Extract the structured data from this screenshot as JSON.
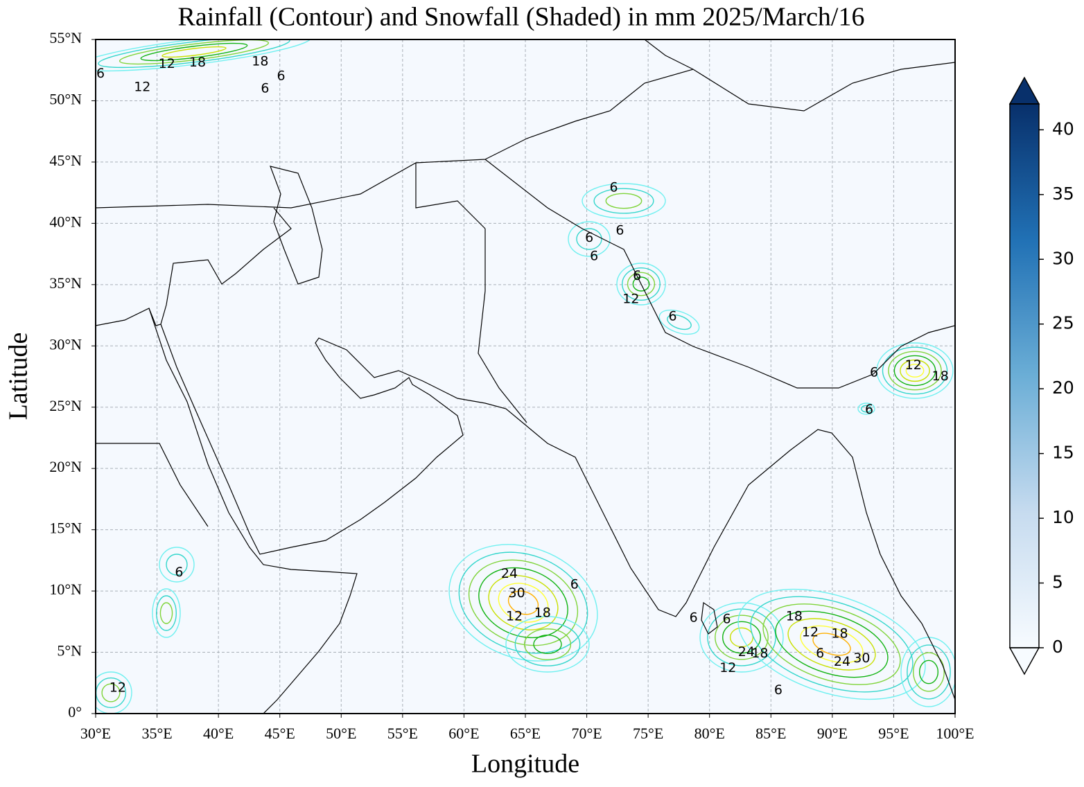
{
  "chart_data": {
    "type": "map",
    "title": "Rainfall (Contour) and Snowfall (Shaded) in mm  2025/March/16",
    "x_label": "Longitude",
    "y_label": "Latitude",
    "xlim": [
      30,
      100
    ],
    "ylim": [
      0,
      55
    ],
    "xticks": [
      {
        "value": 30,
        "label": "30°E"
      },
      {
        "value": 35,
        "label": "35°E"
      },
      {
        "value": 40,
        "label": "40°E"
      },
      {
        "value": 45,
        "label": "45°E"
      },
      {
        "value": 50,
        "label": "50°E"
      },
      {
        "value": 55,
        "label": "55°E"
      },
      {
        "value": 60,
        "label": "60°E"
      },
      {
        "value": 65,
        "label": "65°E"
      },
      {
        "value": 70,
        "label": "70°E"
      },
      {
        "value": 75,
        "label": "75°E"
      },
      {
        "value": 80,
        "label": "80°E"
      },
      {
        "value": 85,
        "label": "85°E"
      },
      {
        "value": 90,
        "label": "90°E"
      },
      {
        "value": 95,
        "label": "95°E"
      },
      {
        "value": 100,
        "label": "100°E"
      }
    ],
    "yticks": [
      {
        "value": 0,
        "label": "0°"
      },
      {
        "value": 5,
        "label": "5°N"
      },
      {
        "value": 10,
        "label": "10°N"
      },
      {
        "value": 15,
        "label": "15°N"
      },
      {
        "value": 20,
        "label": "20°N"
      },
      {
        "value": 25,
        "label": "25°N"
      },
      {
        "value": 30,
        "label": "30°N"
      },
      {
        "value": 35,
        "label": "35°N"
      },
      {
        "value": 40,
        "label": "40°N"
      },
      {
        "value": 45,
        "label": "45°N"
      },
      {
        "value": 50,
        "label": "50°N"
      },
      {
        "value": 55,
        "label": "55°N"
      }
    ],
    "grid": true,
    "colorbar": {
      "clim": [
        0,
        42
      ],
      "ticks": [
        0,
        5,
        10,
        15,
        20,
        25,
        30,
        35,
        40
      ],
      "colors": [
        "#f7fbff",
        "#c6dbef",
        "#6baed6",
        "#2171b5",
        "#08306b"
      ]
    },
    "contour_labels": [
      {
        "lon": 30.4,
        "lat": 52.2,
        "value": 6
      },
      {
        "lon": 35.8,
        "lat": 53.0,
        "value": 12
      },
      {
        "lon": 38.3,
        "lat": 53.1,
        "value": 18
      },
      {
        "lon": 43.4,
        "lat": 53.2,
        "value": 18
      },
      {
        "lon": 33.8,
        "lat": 51.1,
        "value": 12
      },
      {
        "lon": 43.8,
        "lat": 51.0,
        "value": 6
      },
      {
        "lon": 45.1,
        "lat": 52.0,
        "value": 6
      },
      {
        "lon": 72.2,
        "lat": 42.9,
        "value": 6
      },
      {
        "lon": 72.7,
        "lat": 39.4,
        "value": 6
      },
      {
        "lon": 70.2,
        "lat": 38.8,
        "value": 6
      },
      {
        "lon": 70.6,
        "lat": 37.3,
        "value": 6
      },
      {
        "lon": 74.1,
        "lat": 35.7,
        "value": 6
      },
      {
        "lon": 73.6,
        "lat": 33.8,
        "value": 12
      },
      {
        "lon": 77.0,
        "lat": 32.4,
        "value": 6
      },
      {
        "lon": 93.4,
        "lat": 27.8,
        "value": 6
      },
      {
        "lon": 96.6,
        "lat": 28.4,
        "value": 12
      },
      {
        "lon": 98.8,
        "lat": 27.5,
        "value": 18
      },
      {
        "lon": 93.0,
        "lat": 24.8,
        "value": 6
      },
      {
        "lon": 36.8,
        "lat": 11.5,
        "value": 6
      },
      {
        "lon": 63.7,
        "lat": 11.4,
        "value": 24
      },
      {
        "lon": 64.3,
        "lat": 9.8,
        "value": 30
      },
      {
        "lon": 69.0,
        "lat": 10.5,
        "value": 6
      },
      {
        "lon": 64.1,
        "lat": 7.9,
        "value": 12
      },
      {
        "lon": 66.4,
        "lat": 8.2,
        "value": 18
      },
      {
        "lon": 78.7,
        "lat": 7.8,
        "value": 6
      },
      {
        "lon": 81.4,
        "lat": 7.7,
        "value": 6
      },
      {
        "lon": 86.9,
        "lat": 7.9,
        "value": 18
      },
      {
        "lon": 88.2,
        "lat": 6.6,
        "value": 12
      },
      {
        "lon": 90.6,
        "lat": 6.5,
        "value": 18
      },
      {
        "lon": 84.1,
        "lat": 4.9,
        "value": 18
      },
      {
        "lon": 83.0,
        "lat": 5.0,
        "value": 24
      },
      {
        "lon": 81.5,
        "lat": 3.7,
        "value": 12
      },
      {
        "lon": 85.6,
        "lat": 1.9,
        "value": 6
      },
      {
        "lon": 92.4,
        "lat": 4.5,
        "value": 30
      },
      {
        "lon": 90.8,
        "lat": 4.2,
        "value": 24
      },
      {
        "lon": 89.0,
        "lat": 4.9,
        "value": 6
      },
      {
        "lon": 31.8,
        "lat": 2.1,
        "value": 12
      }
    ]
  }
}
